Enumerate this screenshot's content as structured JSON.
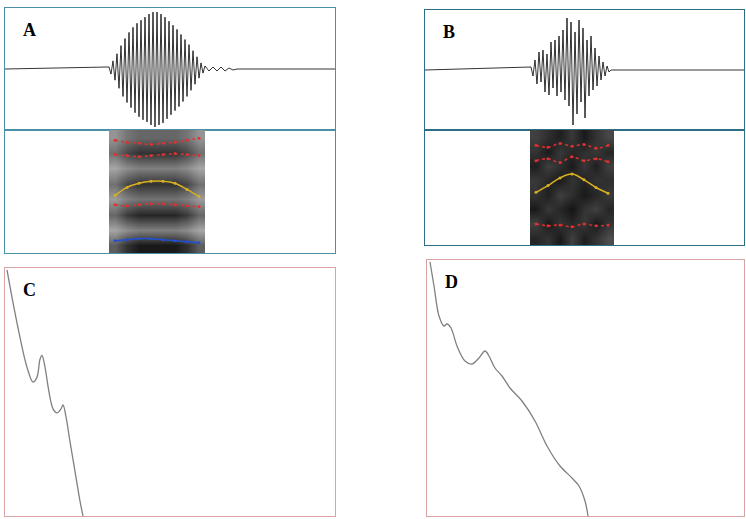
{
  "chart_data": [
    {
      "type": "line",
      "title": "A",
      "color": "#000000",
      "line_style": "solid",
      "grid": false,
      "tick_labels": false,
      "x": [
        0,
        104,
        106,
        108,
        110,
        112,
        114,
        116,
        118,
        120,
        122,
        124,
        126,
        128,
        130,
        132,
        134,
        136,
        138,
        140,
        142,
        144,
        146,
        148,
        150,
        152,
        154,
        156,
        158,
        160,
        162,
        164,
        166,
        168,
        170,
        172,
        174,
        176,
        178,
        180,
        182,
        184,
        186,
        188,
        190,
        192,
        194,
        196,
        198,
        200,
        204,
        208,
        212,
        216,
        220,
        224,
        228,
        232,
        330
      ],
      "values": [
        0,
        2,
        -5,
        8,
        -11,
        15,
        -19,
        23,
        -27,
        30,
        -33,
        36,
        -38,
        41,
        -43,
        45,
        -47,
        48,
        -50,
        51,
        -52,
        54,
        -55,
        56,
        -57,
        56,
        -55,
        54,
        -53,
        51,
        -49,
        47,
        -45,
        43,
        -41,
        39,
        -37,
        34,
        -32,
        29,
        -27,
        24,
        -21,
        18,
        -15,
        12,
        -9,
        6,
        -4,
        3,
        -2,
        2,
        -2,
        2,
        -2,
        1,
        -1,
        0,
        0
      ],
      "xlim": [
        0,
        330
      ],
      "ylim": [
        -60,
        60
      ],
      "xticks": [],
      "yticks": []
    },
    {
      "type": "heatmap",
      "grid": false,
      "tick_labels": false,
      "x": [
        110,
        122,
        134,
        146,
        158,
        170,
        182,
        194
      ],
      "y": [
        7.5,
        22.5,
        37.5,
        52.5,
        67.5,
        82.5,
        97.5,
        112.5
      ],
      "cells": [
        [
          0.63,
          0.81,
          0.9,
          0.9,
          0.9,
          0.9,
          0.81,
          0.63
        ],
        [
          0.35,
          0.45,
          0.5,
          0.5,
          0.5,
          0.5,
          0.45,
          0.35
        ],
        [
          0.6,
          0.77,
          0.85,
          0.85,
          0.85,
          0.85,
          0.77,
          0.6
        ],
        [
          0.39,
          0.5,
          0.55,
          0.55,
          0.55,
          0.55,
          0.5,
          0.39
        ],
        [
          0.56,
          0.72,
          0.8,
          0.8,
          0.8,
          0.8,
          0.72,
          0.56
        ],
        [
          0.35,
          0.45,
          0.5,
          0.5,
          0.5,
          0.5,
          0.45,
          0.35
        ],
        [
          0.56,
          0.72,
          0.8,
          0.8,
          0.8,
          0.8,
          0.72,
          0.56
        ],
        [
          0.42,
          0.54,
          0.6,
          0.6,
          0.6,
          0.6,
          0.54,
          0.42
        ]
      ],
      "zlim": [
        0,
        1
      ],
      "series": [
        {
          "color": "#2050d0",
          "marker": "dot",
          "line_style": "solid",
          "values": [
            12,
            13,
            14,
            14,
            13,
            12,
            11,
            10
          ]
        },
        {
          "color": "#e03030",
          "marker": "dot",
          "line_style": "dotted",
          "values": [
            47,
            46,
            47,
            48,
            48,
            47,
            46,
            45
          ]
        },
        {
          "color": "#d8b020",
          "marker": "dot",
          "line_style": "solid",
          "values": [
            56,
            64,
            68,
            70,
            70,
            68,
            62,
            55
          ]
        },
        {
          "color": "#e03030",
          "marker": "dot",
          "line_style": "dotted",
          "values": [
            96,
            95,
            94,
            95,
            96,
            97,
            96,
            95
          ]
        },
        {
          "color": "#e03030",
          "marker": "dot",
          "line_style": "dotted",
          "values": [
            110,
            108,
            107,
            106,
            107,
            108,
            110,
            112
          ]
        }
      ],
      "xlim": [
        0,
        330
      ],
      "ylim": [
        0,
        120
      ],
      "xticks": [],
      "yticks": []
    },
    {
      "type": "line",
      "title": "B",
      "color": "#000000",
      "line_style": "solid",
      "grid": false,
      "tick_labels": false,
      "x": [
        0,
        106,
        108,
        110,
        112,
        114,
        116,
        118,
        120,
        122,
        124,
        126,
        128,
        130,
        132,
        134,
        136,
        138,
        140,
        142,
        144,
        146,
        148,
        150,
        152,
        154,
        156,
        158,
        160,
        162,
        164,
        166,
        168,
        170,
        172,
        174,
        176,
        178,
        180,
        182,
        184,
        186,
        319
      ],
      "values": [
        0,
        3,
        -6,
        10,
        -14,
        18,
        -12,
        20,
        -22,
        16,
        -25,
        28,
        -18,
        30,
        -26,
        34,
        -22,
        40,
        -30,
        52,
        -36,
        48,
        -55,
        38,
        -44,
        50,
        -32,
        42,
        -48,
        30,
        -26,
        34,
        -20,
        22,
        -16,
        14,
        -10,
        8,
        -6,
        4,
        -2,
        0,
        0
      ],
      "xlim": [
        0,
        319
      ],
      "ylim": [
        -60,
        60
      ],
      "xticks": [],
      "yticks": []
    },
    {
      "type": "heatmap",
      "grid": false,
      "tick_labels": false,
      "x": [
        111,
        123,
        135,
        147,
        159,
        171,
        183
      ],
      "y": [
        7.5,
        22.5,
        37.5,
        52.5,
        67.5,
        82.5,
        97.5,
        112.5
      ],
      "cells": [
        [
          0.85,
          0.8,
          0.9,
          0.75,
          0.88,
          0.8,
          0.7
        ],
        [
          0.75,
          0.9,
          0.8,
          0.85,
          0.78,
          0.9,
          0.8
        ],
        [
          0.9,
          0.78,
          0.85,
          0.92,
          0.8,
          0.75,
          0.85
        ],
        [
          0.8,
          0.88,
          0.75,
          0.82,
          0.9,
          0.85,
          0.78
        ],
        [
          0.78,
          0.85,
          0.9,
          0.8,
          0.86,
          0.8,
          0.82
        ],
        [
          0.88,
          0.75,
          0.82,
          0.9,
          0.78,
          0.88,
          0.75
        ],
        [
          0.8,
          0.9,
          0.78,
          0.85,
          0.82,
          0.78,
          0.85
        ],
        [
          0.75,
          0.82,
          0.88,
          0.78,
          0.9,
          0.8,
          0.72
        ]
      ],
      "zlim": [
        0,
        1
      ],
      "series": [
        {
          "color": "#e03030",
          "marker": "dot",
          "line_style": "dotted",
          "values": [
            22,
            20,
            21,
            19,
            22,
            20,
            21
          ]
        },
        {
          "color": "#d8b020",
          "marker": "dot",
          "line_style": "solid",
          "values": [
            55,
            62,
            70,
            74,
            68,
            60,
            54
          ]
        },
        {
          "color": "#e03030",
          "marker": "dot",
          "line_style": "dotted",
          "values": [
            88,
            90,
            86,
            92,
            88,
            90,
            87
          ]
        },
        {
          "color": "#e03030",
          "marker": "dot",
          "line_style": "dotted",
          "values": [
            104,
            102,
            106,
            103,
            105,
            101,
            104
          ]
        }
      ],
      "xlim": [
        0,
        319
      ],
      "ylim": [
        0,
        120
      ],
      "xticks": [],
      "yticks": []
    },
    {
      "type": "line",
      "title": "C",
      "color": "#808080",
      "line_style": "smooth",
      "grid": false,
      "tick_labels": false,
      "x": [
        2,
        8,
        15,
        22,
        28,
        32,
        35,
        37,
        40,
        44,
        48,
        52,
        56,
        58,
        61,
        65,
        70,
        75,
        78
      ],
      "values": [
        248,
        215,
        180,
        150,
        135,
        140,
        158,
        162,
        150,
        125,
        108,
        104,
        108,
        112,
        100,
        75,
        45,
        15,
        0
      ],
      "xlim": [
        0,
        330
      ],
      "ylim": [
        0,
        250
      ],
      "xticks": [],
      "yticks": []
    },
    {
      "type": "line",
      "title": "D",
      "color": "#808080",
      "line_style": "smooth",
      "grid": false,
      "tick_labels": false,
      "x": [
        3,
        7,
        12,
        17,
        20,
        24,
        30,
        38,
        45,
        52,
        58,
        62,
        68,
        75,
        83,
        95,
        108,
        120,
        133,
        145,
        152,
        158,
        161
      ],
      "values": [
        254,
        230,
        200,
        190,
        192,
        188,
        170,
        155,
        152,
        158,
        165,
        160,
        148,
        140,
        128,
        115,
        95,
        70,
        50,
        38,
        30,
        15,
        0
      ],
      "xlim": [
        0,
        317
      ],
      "ylim": [
        0,
        256
      ],
      "xticks": [],
      "yticks": []
    }
  ]
}
